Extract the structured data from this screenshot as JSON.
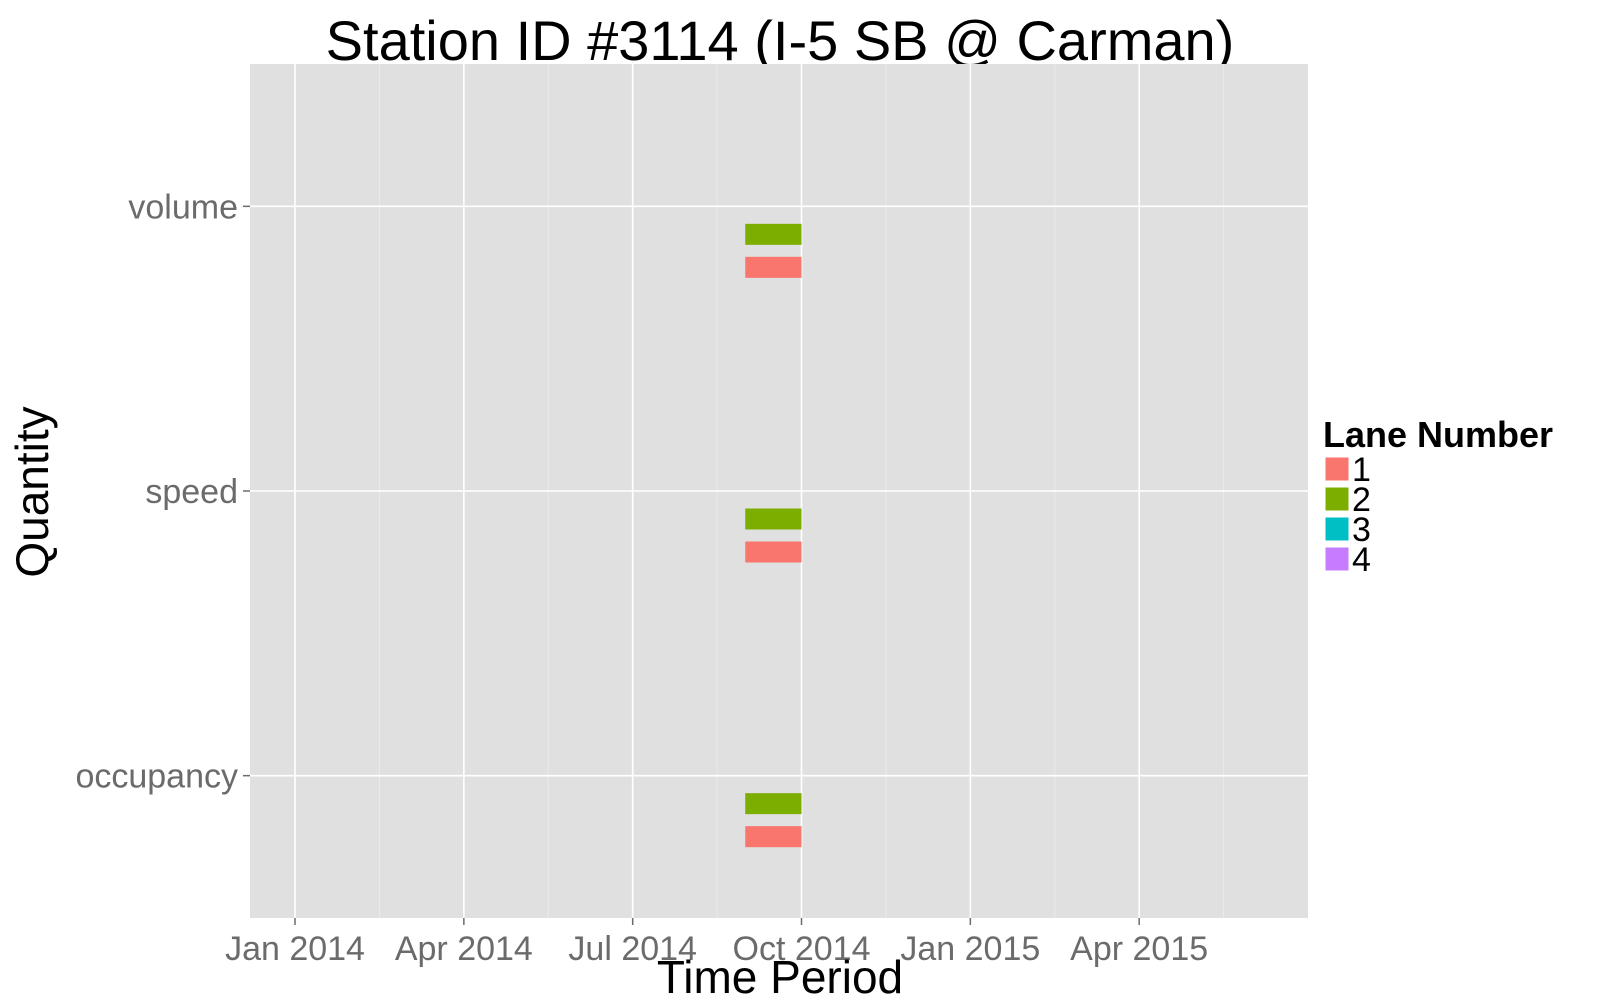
{
  "chart_data": {
    "type": "bar",
    "title": "Station ID #3114 (I-5 SB @ Carman)",
    "xlabel": "Time Period",
    "ylabel": "Quantity",
    "x_ticks": [
      "Jan 2014",
      "Apr 2014",
      "Jul 2014",
      "Oct 2014",
      "Jan 2015",
      "Apr 2015"
    ],
    "x_tick_months": [
      0,
      3,
      6,
      9,
      12,
      15
    ],
    "x_range_months": [
      -0.8,
      18.0
    ],
    "categories": [
      "volume",
      "speed",
      "occupancy"
    ],
    "legend": {
      "title": "Lane Number",
      "entries": [
        {
          "label": "1",
          "color": "#f8766d"
        },
        {
          "label": "2",
          "color": "#7cae00"
        },
        {
          "label": "3",
          "color": "#00bfc4"
        },
        {
          "label": "4",
          "color": "#c77cff"
        }
      ]
    },
    "series": [
      {
        "name": "1",
        "color": "#f8766d",
        "segments": [
          {
            "category": "volume",
            "start_month": 8.0,
            "end_month": 9.0
          },
          {
            "category": "speed",
            "start_month": 8.0,
            "end_month": 9.0
          },
          {
            "category": "occupancy",
            "start_month": 8.0,
            "end_month": 9.0
          }
        ]
      },
      {
        "name": "2",
        "color": "#7cae00",
        "segments": [
          {
            "category": "volume",
            "start_month": 8.0,
            "end_month": 9.0
          },
          {
            "category": "speed",
            "start_month": 8.0,
            "end_month": 9.0
          },
          {
            "category": "occupancy",
            "start_month": 8.0,
            "end_month": 9.0
          }
        ]
      },
      {
        "name": "3",
        "color": "#00bfc4",
        "segments": []
      },
      {
        "name": "4",
        "color": "#c77cff",
        "segments": []
      }
    ]
  }
}
